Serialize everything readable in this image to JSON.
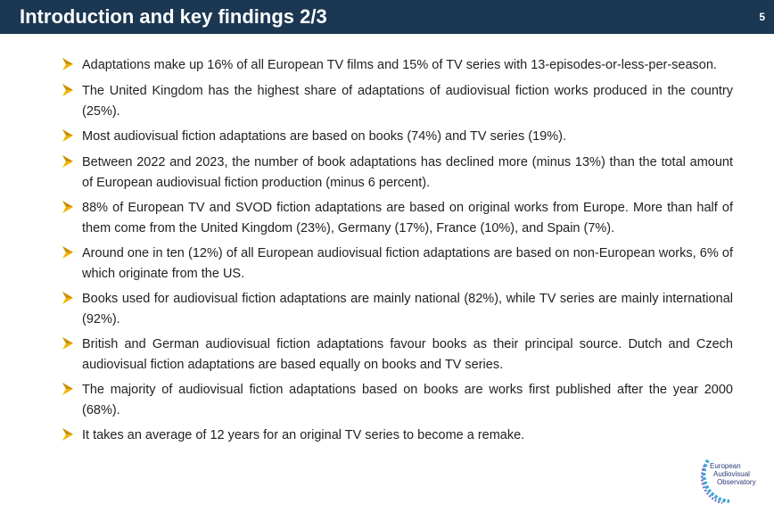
{
  "header": {
    "title": "Introduction and key findings 2/3",
    "page_number": "5",
    "background": "#1b3752"
  },
  "bullet_icon": "arrow-bullet-icon",
  "accent_color": "#f2b400",
  "bullets": [
    {
      "text": "Adaptations make up 16% of all European TV films and 15% of TV series with 13-episodes-or-less-per-season."
    },
    {
      "text": "The United Kingdom has the highest share of adaptations of audiovisual fiction works produced in the country (25%)."
    },
    {
      "text": "Most audiovisual fiction adaptations are based on books (74%) and TV series (19%)."
    },
    {
      "text": "Between 2022 and 2023, the number of book adaptations has declined more (minus 13%) than the total amount of European audiovisual fiction production (minus 6 percent)."
    },
    {
      "text": "88% of European TV and SVOD fiction adaptations are based on original works from Europe. More than half of them come from the United Kingdom (23%), Germany (17%), France (10%), and Spain (7%)."
    },
    {
      "text": "Around one in ten (12%) of all European audiovisual fiction adaptations are based on non-European works, 6% of which originate from the US."
    },
    {
      "text": "Books used for audiovisual fiction adaptations are mainly national (82%), while TV series are mainly international (92%)."
    },
    {
      "text": "British and German audiovisual fiction adaptations favour books as their principal source. Dutch and Czech audiovisual fiction adaptations are based equally on books and TV series."
    },
    {
      "text": "The majority of audiovisual fiction adaptations based on books are works first published after the year 2000 (68%)."
    },
    {
      "text": "It takes an average of 12 years for an original TV series to become a remake."
    }
  ],
  "logo": {
    "line1": "European",
    "line2": "Audiovisual",
    "line3": "Observatory"
  }
}
